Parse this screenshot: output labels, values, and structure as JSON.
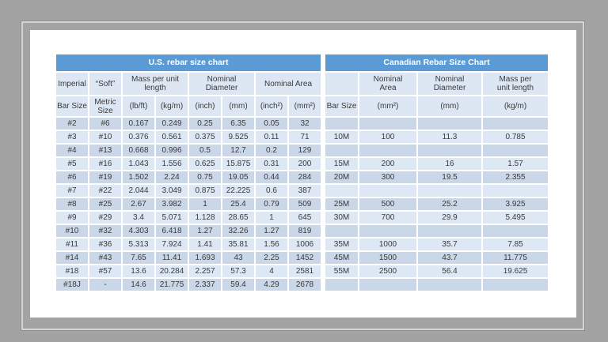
{
  "page": {
    "background_color": "#a3a3a3",
    "card_color": "#ffffff"
  },
  "colors": {
    "header_blue": "#5b9bd5",
    "header_row_bg": "#dce7f3",
    "band_dark": "#c9d7e9",
    "band_light": "#dde8f4",
    "text": "#3a3a3a",
    "title_text": "#ffffff"
  },
  "us": {
    "title": "U.S. rebar size chart",
    "group_headers": [
      "Imperial",
      "“Soft”",
      "Mass per unit\nlength",
      "Nominal Diameter",
      "Nominal Area"
    ],
    "unit_headers": [
      "Bar Size",
      "Metric\nSize",
      "(lb/ft)",
      "(kg/m)",
      "(inch)",
      "(mm)",
      "(inch²)",
      "(mm²)"
    ],
    "rows": [
      [
        "#2",
        "#6",
        "0.167",
        "0.249",
        "0.25",
        "6.35",
        "0.05",
        "32"
      ],
      [
        "#3",
        "#10",
        "0.376",
        "0.561",
        "0.375",
        "9.525",
        "0.11",
        "71"
      ],
      [
        "#4",
        "#13",
        "0.668",
        "0.996",
        "0.5",
        "12.7",
        "0.2",
        "129"
      ],
      [
        "#5",
        "#16",
        "1.043",
        "1.556",
        "0.625",
        "15.875",
        "0.31",
        "200"
      ],
      [
        "#6",
        "#19",
        "1.502",
        "2.24",
        "0.75",
        "19.05",
        "0.44",
        "284"
      ],
      [
        "#7",
        "#22",
        "2.044",
        "3.049",
        "0.875",
        "22.225",
        "0.6",
        "387"
      ],
      [
        "#8",
        "#25",
        "2.67",
        "3.982",
        "1",
        "25.4",
        "0.79",
        "509"
      ],
      [
        "#9",
        "#29",
        "3.4",
        "5.071",
        "1.128",
        "28.65",
        "1",
        "645"
      ],
      [
        "#10",
        "#32",
        "4.303",
        "6.418",
        "1.27",
        "32.26",
        "1.27",
        "819"
      ],
      [
        "#11",
        "#36",
        "5.313",
        "7.924",
        "1.41",
        "35.81",
        "1.56",
        "1006"
      ],
      [
        "#14",
        "#43",
        "7.65",
        "11.41",
        "1.693",
        "43",
        "2.25",
        "1452"
      ],
      [
        "#18",
        "#57",
        "13.6",
        "20.284",
        "2.257",
        "57.3",
        "4",
        "2581"
      ],
      [
        "#18J",
        "-",
        "14.6",
        "21.775",
        "2.337",
        "59.4",
        "4.29",
        "2678"
      ]
    ]
  },
  "ca": {
    "title": "Canadian Rebar Size Chart",
    "group_headers": [
      "",
      "Nominal\nArea",
      "Nominal\nDiameter",
      "Mass per\nunit length"
    ],
    "unit_headers": [
      "Bar Size",
      "(mm²)",
      "(mm)",
      "(kg/m)"
    ],
    "rows": [
      [
        "",
        "",
        "",
        ""
      ],
      [
        "10M",
        "100",
        "11.3",
        "0.785"
      ],
      [
        "",
        "",
        "",
        ""
      ],
      [
        "15M",
        "200",
        "16",
        "1.57"
      ],
      [
        "20M",
        "300",
        "19.5",
        "2.355"
      ],
      [
        "",
        "",
        "",
        ""
      ],
      [
        "25M",
        "500",
        "25.2",
        "3.925"
      ],
      [
        "30M",
        "700",
        "29.9",
        "5.495"
      ],
      [
        "",
        "",
        "",
        ""
      ],
      [
        "35M",
        "1000",
        "35.7",
        "7.85"
      ],
      [
        "45M",
        "1500",
        "43.7",
        "11.775"
      ],
      [
        "55M",
        "2500",
        "56.4",
        "19.625"
      ],
      [
        "",
        "",
        "",
        ""
      ]
    ]
  }
}
